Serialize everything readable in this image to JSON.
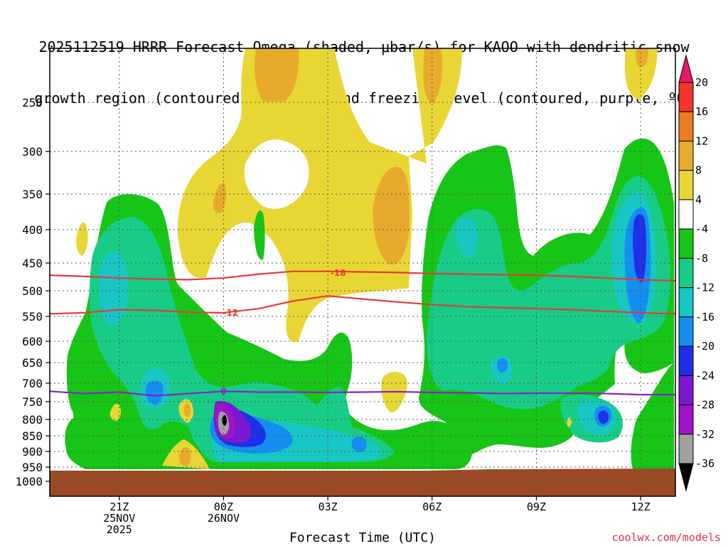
{
  "title": {
    "line1": "2025112519 HRRR Forecast Omega (shaded, μbar/s) for KAOO with dendritic snow",
    "line2": "growth region (contoured, red, ºC) and freezing level (contoured, purple, ºC)"
  },
  "credit": "coolwx.com/models",
  "chart_data": {
    "type": "contour",
    "xlabel": "Forecast Time (UTC)",
    "ylabel": "",
    "x_ticks": [
      {
        "hour": 2,
        "lines": [
          "21Z",
          "25NOV",
          "2025"
        ]
      },
      {
        "hour": 5,
        "lines": [
          "00Z",
          "26NOV"
        ]
      },
      {
        "hour": 8,
        "lines": [
          "03Z"
        ]
      },
      {
        "hour": 11,
        "lines": [
          "06Z"
        ]
      },
      {
        "hour": 14,
        "lines": [
          "09Z"
        ]
      },
      {
        "hour": 17,
        "lines": [
          "12Z"
        ]
      }
    ],
    "x_range_hours_after_init": [
      0,
      18
    ],
    "y_axis": {
      "scale": "log-pressure",
      "unit": "hPa",
      "range": [
        1000,
        200
      ],
      "ticks": [
        250,
        300,
        350,
        400,
        450,
        500,
        550,
        600,
        650,
        700,
        750,
        800,
        850,
        900,
        950,
        1000
      ]
    },
    "colorbar": {
      "levels": [
        20,
        16,
        12,
        8,
        4,
        -4,
        -8,
        -12,
        -16,
        -20,
        -24,
        -28,
        -32,
        -36
      ],
      "colors": [
        "#e8186e",
        "#f0352a",
        "#ea7d23",
        "#e8aa2c",
        "#e8d634",
        "#ffffff",
        "#17c517",
        "#18cc87",
        "#18c6c4",
        "#148ff0",
        "#1d30e8",
        "#7a18d2",
        "#a212c8",
        "#a0a0a0",
        "#000000"
      ],
      "unit": "μbar/s"
    },
    "ground_color": "#9a4a25",
    "grid": true,
    "contours": [
      {
        "name": "dgz-minus-18",
        "label": "-18",
        "color": "#e53a3a",
        "points": [
          [
            0,
            472
          ],
          [
            1,
            474
          ],
          [
            2,
            477
          ],
          [
            3,
            479
          ],
          [
            4,
            480
          ],
          [
            5,
            477
          ],
          [
            6,
            470
          ],
          [
            7,
            465
          ],
          [
            8,
            465
          ],
          [
            9,
            466
          ],
          [
            10,
            467
          ],
          [
            11,
            469
          ],
          [
            12,
            470
          ],
          [
            13,
            471
          ],
          [
            14,
            472
          ],
          [
            15,
            474
          ],
          [
            16,
            477
          ],
          [
            17,
            480
          ],
          [
            18,
            482
          ]
        ]
      },
      {
        "name": "dgz-minus-12",
        "label": "-12",
        "color": "#e53a3a",
        "points": [
          [
            0,
            545
          ],
          [
            1,
            543
          ],
          [
            2,
            537
          ],
          [
            3,
            538
          ],
          [
            4,
            542
          ],
          [
            5,
            543
          ],
          [
            6,
            535
          ],
          [
            7,
            520
          ],
          [
            8,
            510
          ],
          [
            9,
            516
          ],
          [
            10,
            522
          ],
          [
            11,
            527
          ],
          [
            12,
            531
          ],
          [
            13,
            533
          ],
          [
            14,
            535
          ],
          [
            15,
            537
          ],
          [
            16,
            540
          ],
          [
            17,
            543
          ],
          [
            18,
            545
          ]
        ]
      },
      {
        "name": "freezing-level-0",
        "label": "0",
        "color": "#8a22c8",
        "points": [
          [
            0,
            722
          ],
          [
            1,
            728
          ],
          [
            2,
            724
          ],
          [
            3,
            734
          ],
          [
            4,
            728
          ],
          [
            5,
            722
          ],
          [
            6,
            724
          ],
          [
            7,
            724
          ],
          [
            8,
            725
          ],
          [
            9,
            724
          ],
          [
            10,
            723
          ],
          [
            11,
            725
          ],
          [
            12,
            726
          ],
          [
            13,
            728
          ],
          [
            14,
            727
          ],
          [
            15,
            727
          ],
          [
            16,
            728
          ],
          [
            17,
            731
          ],
          [
            18,
            731
          ]
        ]
      }
    ]
  }
}
